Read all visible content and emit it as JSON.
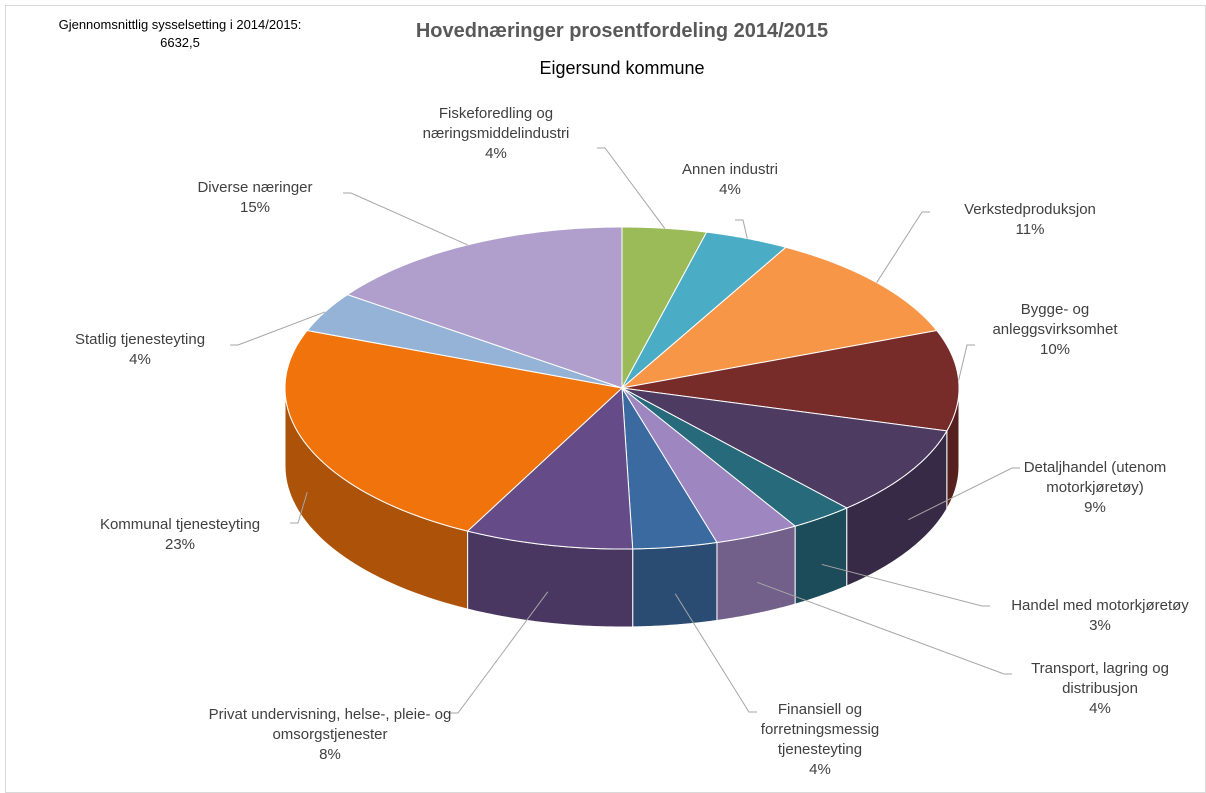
{
  "chart_data": {
    "type": "pie3d",
    "title": "Hovednæringer prosentfordeling 2014/2015",
    "subtitle": "Eigersund kommune",
    "annotation": [
      "Gjennomsnittlig sysselsetting i 2014/2015:",
      "6632,5"
    ],
    "categories": [
      "Fiskeforedling og næringsmiddelindustri",
      "Annen industri",
      "Verkstedproduksjon",
      "Bygge- og anleggsvirksomhet",
      "Detaljhandel (utenom motorkjøretøy)",
      "Handel med motorkjøretøy",
      "Transport, lagring og distribusjon",
      "Finansiell og forretningsmessig tjenesteyting",
      "Privat undervisning, helse-, pleie- og omsorgstjenester",
      "Kommunal tjenesteyting",
      "Statlig tjenesteyting",
      "Diverse næringer"
    ],
    "values": [
      4,
      4,
      11,
      10,
      9,
      3,
      4,
      4,
      8,
      23,
      4,
      15
    ],
    "value_labels": [
      "4%",
      "4%",
      "11%",
      "10%",
      "9%",
      "3%",
      "4%",
      "4%",
      "8%",
      "23%",
      "4%",
      "15%"
    ],
    "colors": [
      "#9bbb59",
      "#4bacc6",
      "#f79646",
      "#772c2a",
      "#4d3b62",
      "#276a7c",
      "#9e86c0",
      "#3a6aa0",
      "#654c88",
      "#f0730c",
      "#95b3d7",
      "#b09fcc"
    ]
  }
}
